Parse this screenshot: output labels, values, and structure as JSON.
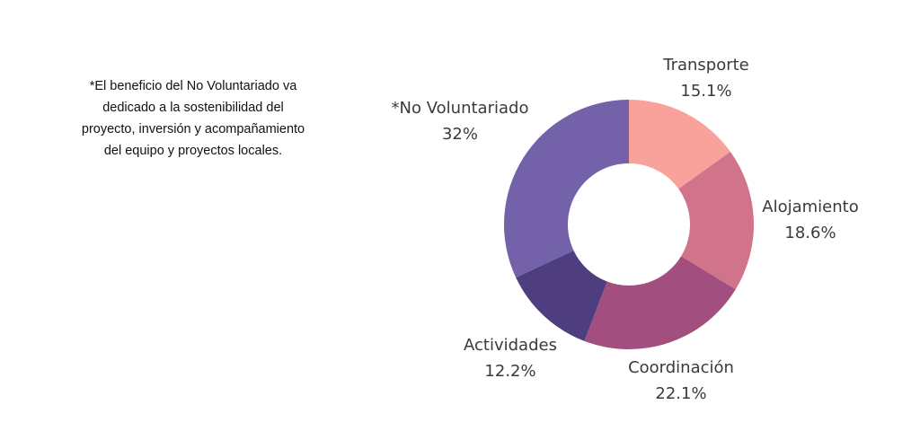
{
  "note": {
    "text": "*El beneficio del No Voluntariado  va\ndedicado a la sostenibilidad del\nproyecto, inversión y acompañamiento\ndel equipo y proyectos locales."
  },
  "chart_data": {
    "type": "pie",
    "donut": true,
    "categories": [
      "Transporte",
      "Alojamiento",
      "Coordinación",
      "Actividades",
      "*No Voluntariado"
    ],
    "values": [
      15.1,
      18.6,
      22.1,
      12.2,
      32
    ],
    "value_labels": [
      "15.1%",
      "18.6%",
      "22.1%",
      "12.2%",
      "32%"
    ],
    "colors": [
      "#f8a29b",
      "#d1738b",
      "#a24f80",
      "#4e3e80",
      "#7361aa"
    ],
    "start_angle": "12 o'clock",
    "direction": "clockwise",
    "legend": "none (labels placed beside slices)"
  }
}
